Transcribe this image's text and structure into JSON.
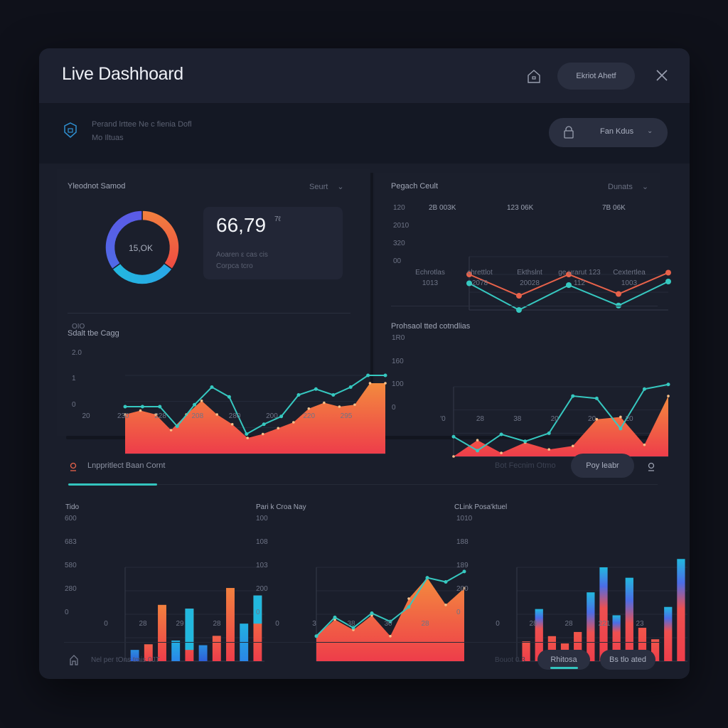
{
  "window": {
    "title": "Live Dashhoard",
    "title_pill": "Ekriot Ahetf",
    "icons": {
      "home": "home-icon",
      "close": "close-icon"
    }
  },
  "subbar": {
    "line1": "Perand lrttee Ne c fienia Dofl",
    "line2": "Mo Iltuas",
    "filter_label": "Fan Kdus",
    "icons": {
      "shield": "shield-icon",
      "lock": "lock-icon",
      "chevron": "chevron-down-icon"
    }
  },
  "donut_section": {
    "title": "Yleodnot Samod",
    "dropdown": "Seurt",
    "center_label": "15,OK",
    "kpi": {
      "value": "66,79",
      "superscript": "7ℓ",
      "sub1": "Aoaren ε cas cis",
      "sub2": "Corpca tcro"
    }
  },
  "theme": {
    "orange": "#f2813f",
    "red": "#ee3d4a",
    "teal": "#36c8c0",
    "cyan": "#22b8de",
    "blue": "#3b6de0",
    "purple": "#5b5ae6",
    "coral": "#e8624a"
  },
  "bottom_tabs": {
    "title": "Lnppritlect Baan Cornt",
    "right_label": "Bot Fecnim Otmo",
    "pill_label": "Poy leabr",
    "icons": {
      "tab": "pin-icon",
      "search": "search-icon"
    }
  },
  "footer": {
    "status_text": "Nel per tOns tmis 0JT",
    "page_label": "Bouot 0 3",
    "primary_button": "Rhitosa",
    "secondary_button": "Bs tlo ated",
    "icons": {
      "home": "house-icon"
    }
  },
  "chart_data": [
    {
      "id": "donut",
      "type": "pie",
      "title": "Yleodnot Samod",
      "center_label": "15,OK",
      "slices": [
        {
          "name": "Orange",
          "value": 35,
          "color": "#f2813f"
        },
        {
          "name": "Teal",
          "value": 30,
          "color": "#22b8de"
        },
        {
          "name": "Purple",
          "value": 35,
          "color": "#5b5ae6"
        }
      ]
    },
    {
      "id": "area1",
      "type": "area",
      "title": "Sdalt tbe Cagg",
      "yticks": [
        "0",
        "1",
        "2.0",
        "OIO"
      ],
      "xticks": [
        "20",
        "230",
        "228",
        "208",
        "280",
        "200",
        "220",
        "295"
      ],
      "ylim": [
        0,
        4
      ],
      "series": [
        {
          "name": "area",
          "color": "#f2813f",
          "values": [
            2.0,
            2.2,
            2.0,
            1.2,
            2.0,
            2.7,
            2.0,
            1.5,
            0.8,
            1.0,
            1.3,
            1.6,
            2.3,
            2.6,
            2.4,
            2.5,
            3.6,
            3.6
          ]
        },
        {
          "name": "line",
          "color": "#36c8c0",
          "values": [
            2.4,
            2.4,
            2.4,
            1.4,
            2.5,
            3.4,
            2.9,
            1.0,
            1.5,
            1.9,
            3.0,
            3.3,
            3.0,
            3.4,
            4.0,
            4.0
          ]
        }
      ]
    },
    {
      "id": "line1",
      "type": "line",
      "title": "Pegach Ceult",
      "dropdown": "Dunats",
      "yticks": [
        "00",
        "320",
        "2010",
        "120"
      ],
      "xticks": [
        "Echrotlas 1013",
        "chrettlot 2078",
        "Ekthslnt 20028",
        "ge urarut 123 112",
        "Cextertlea 1003"
      ],
      "annotations": [
        "2B 003K",
        "123 06K",
        "7B 06K"
      ],
      "ylim": [
        0,
        3
      ],
      "series": [
        {
          "name": "Series A",
          "color": "#e8624a",
          "values": [
            2.0,
            0.8,
            2.0,
            0.9,
            2.1
          ]
        },
        {
          "name": "Series B",
          "color": "#36c8c0",
          "values": [
            1.5,
            0.0,
            1.4,
            0.25,
            1.6
          ]
        }
      ]
    },
    {
      "id": "area2",
      "type": "area",
      "title": "Prohsaol tted cotndlias",
      "yticks": [
        "0",
        "100",
        "160",
        "1R0"
      ],
      "xticks": [
        "'0",
        "28",
        "38",
        "20",
        "20",
        "20"
      ],
      "ylim": [
        0,
        3
      ],
      "series": [
        {
          "name": "area",
          "color": "#f2813f",
          "values": [
            0,
            0.7,
            0.15,
            0.6,
            0.3,
            0.45,
            1.6,
            1.7,
            0.5,
            2.6
          ]
        },
        {
          "name": "line",
          "color": "#36c8c0",
          "values": [
            0.85,
            0.25,
            0.95,
            0.65,
            1.0,
            2.6,
            2.5,
            1.2,
            2.9,
            3.1
          ]
        }
      ]
    },
    {
      "id": "bars1",
      "type": "bar",
      "title": "Tido",
      "yticks": [
        "0",
        "280",
        "580",
        "683",
        "600"
      ],
      "xticks": [
        "0",
        "28",
        "29",
        "28"
      ],
      "ylim": [
        0,
        5
      ],
      "bars": [
        {
          "value": 0.6,
          "top": 0.0,
          "kind": "blue"
        },
        {
          "value": 0.9,
          "top": 0.0,
          "kind": "red"
        },
        {
          "value": 3.0,
          "top": 0.0,
          "kind": "orange"
        },
        {
          "value": 1.1,
          "top": 0.0,
          "kind": "cyan"
        },
        {
          "value": 2.8,
          "top": 2.2,
          "kind": "stack"
        },
        {
          "value": 0.85,
          "top": 0.0,
          "kind": "blue"
        },
        {
          "value": 1.35,
          "top": 0.0,
          "kind": "red"
        },
        {
          "value": 3.9,
          "top": 0.0,
          "kind": "orange"
        },
        {
          "value": 2.0,
          "top": 0.0,
          "kind": "cyan"
        },
        {
          "value": 3.5,
          "top": 1.5,
          "kind": "stack"
        }
      ]
    },
    {
      "id": "area3",
      "type": "area",
      "title": "Pari k Croa Nay",
      "yticks": [
        "0",
        "200",
        "103",
        "108",
        "100"
      ],
      "xticks": [
        "0",
        "3",
        "38",
        "30",
        "28"
      ],
      "ylim": [
        0,
        4.5
      ],
      "series": [
        {
          "name": "area",
          "color": "#f2813f",
          "values": [
            1.2,
            2.0,
            1.5,
            2.2,
            1.2,
            3.0,
            4.0,
            2.7,
            3.5
          ]
        },
        {
          "name": "line",
          "color": "#36c8c0",
          "values": [
            1.2,
            2.1,
            1.6,
            2.3,
            1.9,
            2.6,
            4.0,
            3.8,
            4.3
          ]
        }
      ]
    },
    {
      "id": "bars2",
      "type": "bar",
      "title": "CLink Posa'ktuel",
      "yticks": [
        "0",
        "200",
        "189",
        "188",
        "1010"
      ],
      "xticks": [
        "0",
        "28",
        "28",
        "221",
        "23"
      ],
      "ylim": [
        0,
        4.5
      ],
      "bars": [
        {
          "value": 0.95,
          "top": 0.0
        },
        {
          "value": 2.5,
          "top": 0.7
        },
        {
          "value": 1.2,
          "top": 0.0
        },
        {
          "value": 0.85,
          "top": 0.0
        },
        {
          "value": 1.4,
          "top": 0.0
        },
        {
          "value": 3.3,
          "top": 1.6
        },
        {
          "value": 4.5,
          "top": 1.5
        },
        {
          "value": 2.2,
          "top": 0.6
        },
        {
          "value": 4.0,
          "top": 1.8
        },
        {
          "value": 1.6,
          "top": 0.0
        },
        {
          "value": 1.05,
          "top": 0.0
        },
        {
          "value": 2.6,
          "top": 0.9
        },
        {
          "value": 4.9,
          "top": 1.9
        }
      ]
    }
  ]
}
